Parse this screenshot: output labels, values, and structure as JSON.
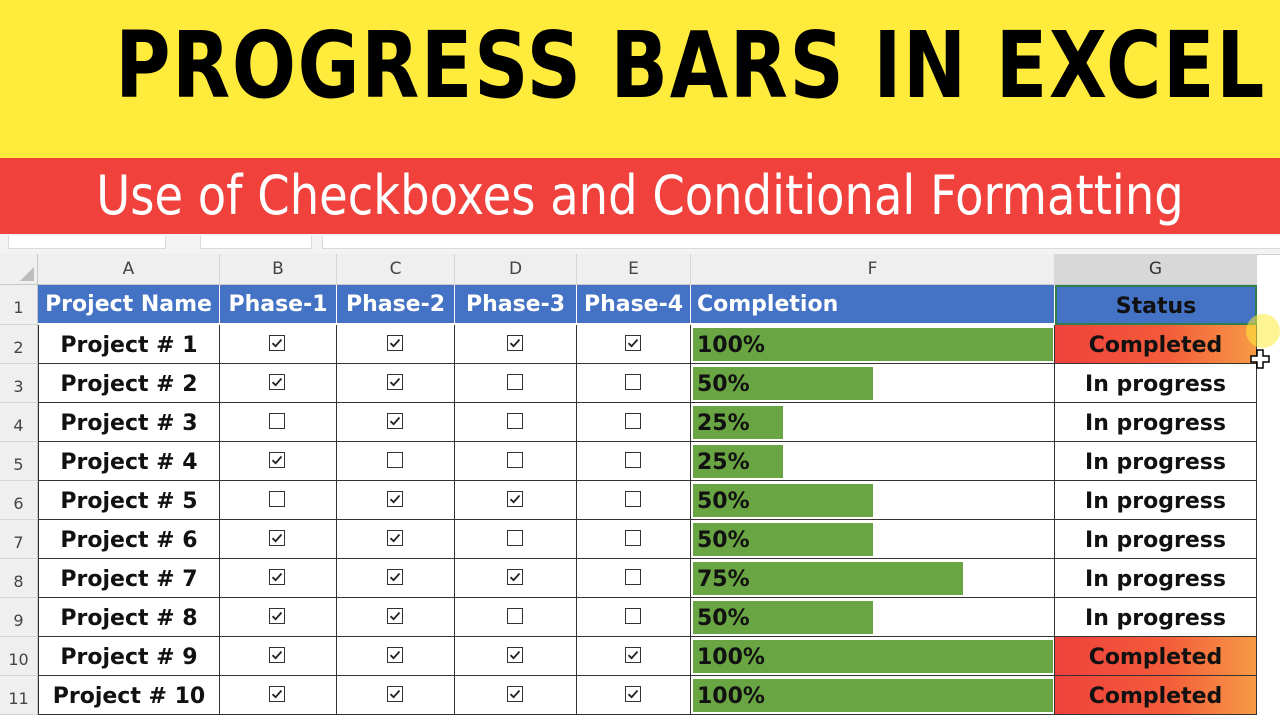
{
  "banner": {
    "title": "PROGRESS BARS IN EXCEL",
    "subtitle": "Use of Checkboxes and Conditional Formatting"
  },
  "colors": {
    "title_bg": "#ffeb3b",
    "subtitle_bg": "#f0413d",
    "header_bg": "#4472c4",
    "progress_bar": "#6aa544",
    "completed_status": "#f0413d"
  },
  "columns": [
    "A",
    "B",
    "C",
    "D",
    "E",
    "F",
    "G"
  ],
  "headers": {
    "project_name": "Project Name",
    "phase1": "Phase-1",
    "phase2": "Phase-2",
    "phase3": "Phase-3",
    "phase4": "Phase-4",
    "completion": "Completion",
    "status": "Status"
  },
  "row_numbers": [
    "1",
    "2",
    "3",
    "4",
    "5",
    "6",
    "7",
    "8",
    "9",
    "10",
    "11"
  ],
  "rows": [
    {
      "name": "Project # 1",
      "phases": [
        true,
        true,
        true,
        true
      ],
      "completion": "100%",
      "completion_value": 1.0,
      "status": "Completed"
    },
    {
      "name": "Project # 2",
      "phases": [
        true,
        true,
        false,
        false
      ],
      "completion": "50%",
      "completion_value": 0.5,
      "status": "In progress"
    },
    {
      "name": "Project # 3",
      "phases": [
        false,
        true,
        false,
        false
      ],
      "completion": "25%",
      "completion_value": 0.25,
      "status": "In progress"
    },
    {
      "name": "Project # 4",
      "phases": [
        true,
        false,
        false,
        false
      ],
      "completion": "25%",
      "completion_value": 0.25,
      "status": "In progress"
    },
    {
      "name": "Project # 5",
      "phases": [
        false,
        true,
        true,
        false
      ],
      "completion": "50%",
      "completion_value": 0.5,
      "status": "In progress"
    },
    {
      "name": "Project # 6",
      "phases": [
        true,
        true,
        false,
        false
      ],
      "completion": "50%",
      "completion_value": 0.5,
      "status": "In progress"
    },
    {
      "name": "Project # 7",
      "phases": [
        true,
        true,
        true,
        false
      ],
      "completion": "75%",
      "completion_value": 0.75,
      "status": "In progress"
    },
    {
      "name": "Project # 8",
      "phases": [
        true,
        true,
        false,
        false
      ],
      "completion": "50%",
      "completion_value": 0.5,
      "status": "In progress"
    },
    {
      "name": "Project # 9",
      "phases": [
        true,
        true,
        true,
        true
      ],
      "completion": "100%",
      "completion_value": 1.0,
      "status": "Completed"
    },
    {
      "name": "Project # 10",
      "phases": [
        true,
        true,
        true,
        true
      ],
      "completion": "100%",
      "completion_value": 1.0,
      "status": "Completed"
    }
  ]
}
